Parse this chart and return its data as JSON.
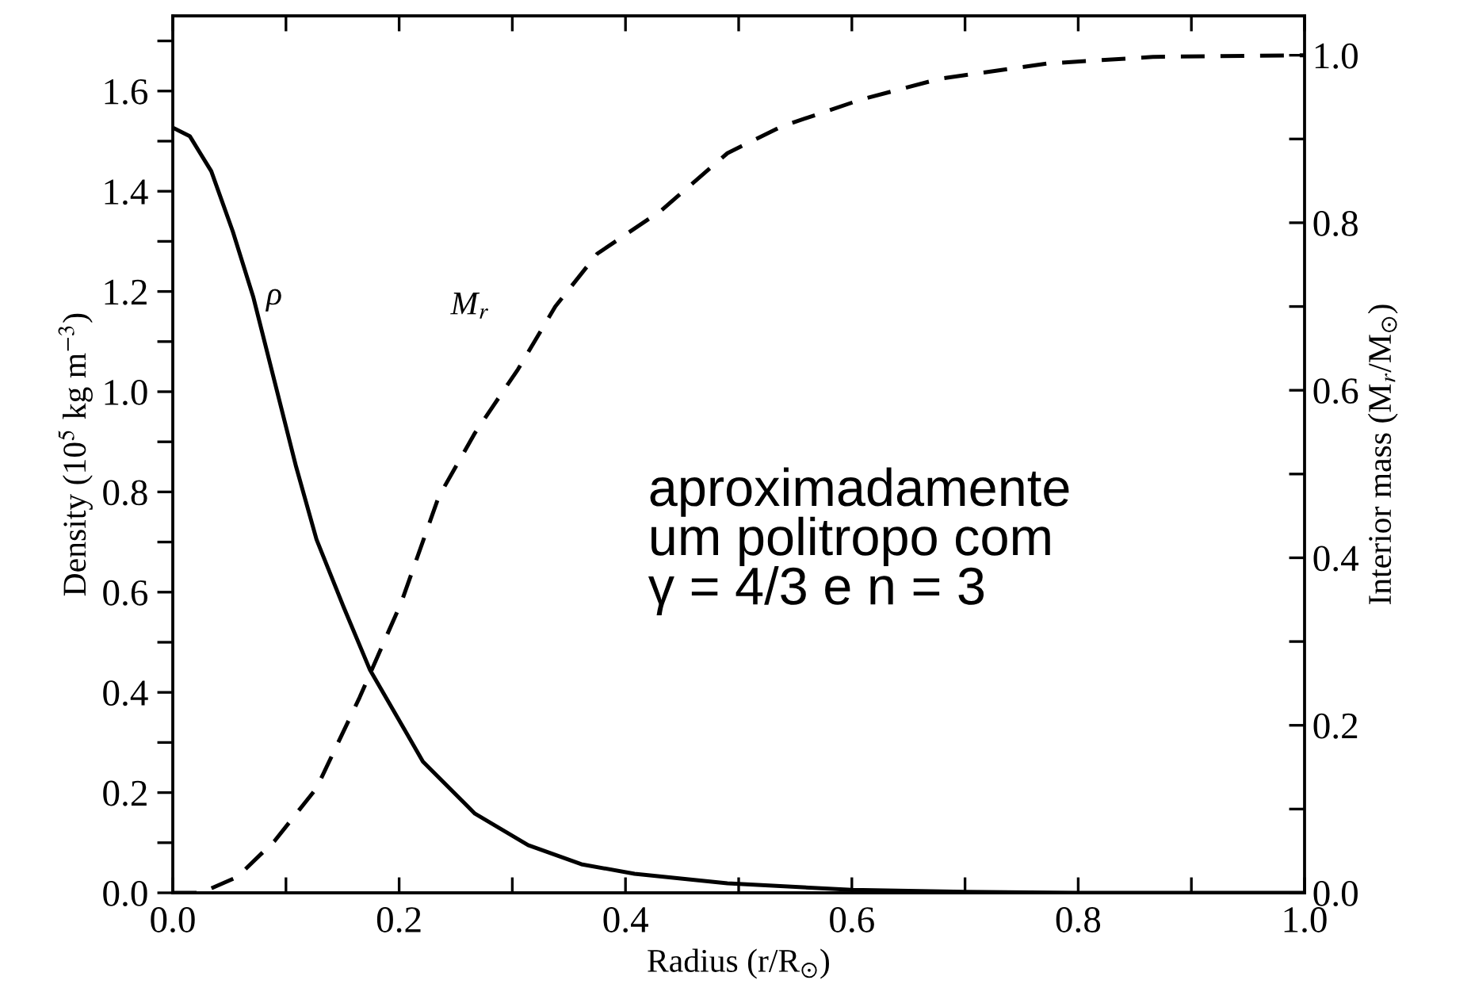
{
  "chart_data": {
    "type": "line",
    "xlabel": "Radius (r/R$_{⊙}$)",
    "ylabel": "Density (10$^{5}$ kg m$^{−3}$)",
    "y2label": "Interior mass (M$_{r}$/M$_{⊙}$)",
    "xlim": [
      0,
      1.0
    ],
    "ylim": [
      0,
      1.75
    ],
    "y2lim": [
      0,
      1.047
    ],
    "xticks": [
      {
        "value": 0,
        "label": "0.0"
      },
      {
        "value": 0.1,
        "label": null
      },
      {
        "value": 0.2,
        "label": "0.2"
      },
      {
        "value": 0.3,
        "label": null
      },
      {
        "value": 0.4,
        "label": "0.4"
      },
      {
        "value": 0.5,
        "label": null
      },
      {
        "value": 0.6,
        "label": "0.6"
      },
      {
        "value": 0.7,
        "label": null
      },
      {
        "value": 0.8,
        "label": "0.8"
      },
      {
        "value": 0.9,
        "label": null
      },
      {
        "value": 1.0,
        "label": "1.0"
      }
    ],
    "yticks": [
      {
        "value": 0,
        "label": "0.0"
      },
      {
        "value": 0.1,
        "label": null
      },
      {
        "value": 0.2,
        "label": "0.2"
      },
      {
        "value": 0.3,
        "label": null
      },
      {
        "value": 0.4,
        "label": "0.4"
      },
      {
        "value": 0.5,
        "label": null
      },
      {
        "value": 0.6,
        "label": "0.6"
      },
      {
        "value": 0.7,
        "label": null
      },
      {
        "value": 0.8,
        "label": "0.8"
      },
      {
        "value": 0.9,
        "label": null
      },
      {
        "value": 1.0,
        "label": "1.0"
      },
      {
        "value": 1.1,
        "label": null
      },
      {
        "value": 1.2,
        "label": "1.2"
      },
      {
        "value": 1.3,
        "label": null
      },
      {
        "value": 1.4,
        "label": "1.4"
      },
      {
        "value": 1.5,
        "label": null
      },
      {
        "value": 1.6,
        "label": "1.6"
      },
      {
        "value": 1.7,
        "label": null
      }
    ],
    "y2ticks": [
      {
        "value": 0,
        "label": "0.0"
      },
      {
        "value": 0.1,
        "label": null
      },
      {
        "value": 0.2,
        "label": "0.2"
      },
      {
        "value": 0.3,
        "label": null
      },
      {
        "value": 0.4,
        "label": "0.4"
      },
      {
        "value": 0.5,
        "label": null
      },
      {
        "value": 0.6,
        "label": "0.6"
      },
      {
        "value": 0.7,
        "label": null
      },
      {
        "value": 0.8,
        "label": "0.8"
      },
      {
        "value": 0.9,
        "label": null
      },
      {
        "value": 1.0,
        "label": "1.0"
      }
    ],
    "series": [
      {
        "name": "ρ",
        "color": "#000000",
        "line_style": "solid",
        "x": [
          0,
          0.015,
          0.034,
          0.053,
          0.071,
          0.09,
          0.109,
          0.127,
          0.151,
          0.174,
          0.221,
          0.267,
          0.314,
          0.361,
          0.408,
          0.49,
          0.6,
          0.7,
          0.8,
          0.9,
          1.0
        ],
        "values": [
          1.527,
          1.51,
          1.44,
          1.32,
          1.19,
          1.02,
          0.85,
          0.705,
          0.57,
          0.446,
          0.262,
          0.158,
          0.095,
          0.057,
          0.038,
          0.019,
          0.006,
          0.002,
          0,
          0,
          0
        ]
      },
      {
        "name": "M$_{r}$",
        "color": "#000000",
        "line_style": "dashed",
        "axis": "y2",
        "x": [
          0,
          0.025,
          0.057,
          0.09,
          0.127,
          0.165,
          0.202,
          0.235,
          0.267,
          0.305,
          0.338,
          0.375,
          0.431,
          0.49,
          0.538,
          0.608,
          0.678,
          0.772,
          0.866,
          1.0
        ],
        "values": [
          0,
          0,
          0.019,
          0.062,
          0.125,
          0.233,
          0.347,
          0.473,
          0.549,
          0.625,
          0.7,
          0.763,
          0.814,
          0.883,
          0.915,
          0.947,
          0.972,
          0.99,
          0.998,
          1.0
        ]
      }
    ],
    "annotations": [
      "aproximadamente\num politropo com\nγ = 4/3 e n = 3"
    ],
    "grid": false,
    "legend": false
  }
}
